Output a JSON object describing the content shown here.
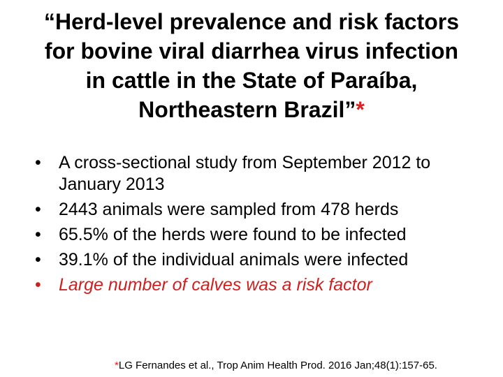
{
  "slide": {
    "title_lines": [
      "“Herd-level prevalence and risk factors",
      "for bovine viral diarrhea virus infection",
      "in cattle in the State of Paraíba,",
      "Northeastern Brazil”"
    ],
    "title_marker": "*",
    "bullet_glyph": "•",
    "bullets": [
      "A cross-sectional study from September 2012 to January 2013",
      "2443 animals were sampled from 478 herds",
      "65.5% of the herds were found to be infected",
      "39.1% of the individual animals were infected",
      "Large number of calves was a risk factor"
    ],
    "footnote_marker": "*",
    "footnote_text": "LG Fernandes et al., Trop Anim Health Prod. 2016 Jan;48(1):157-65.",
    "colors": {
      "accent": "#d01f1f",
      "text": "#000000",
      "background": "#ffffff"
    }
  }
}
